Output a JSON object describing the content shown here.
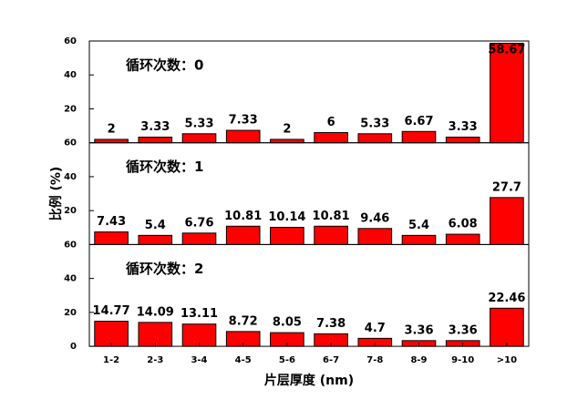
{
  "chart_data": [
    {
      "type": "bar",
      "annotation": "循环次数：0",
      "values": [
        2,
        3.33,
        5.33,
        7.33,
        2,
        6,
        5.33,
        6.67,
        3.33,
        58.67
      ],
      "ylim": [
        0,
        60
      ],
      "yticks": [
        20,
        40,
        60
      ],
      "color": "#ff0000"
    },
    {
      "type": "bar",
      "annotation": "循环次数：1",
      "ylabel": "比例 (%)",
      "values": [
        7.43,
        5.4,
        6.76,
        10.81,
        10.14,
        10.81,
        9.46,
        5.4,
        6.08,
        27.7
      ],
      "ylim": [
        0,
        60
      ],
      "yticks": [
        20,
        40,
        60
      ],
      "color": "#ff0000"
    },
    {
      "type": "bar",
      "annotation": "循环次数：2",
      "xlabel": "片层厚度 (nm)",
      "categories": [
        "1-2",
        "2-3",
        "3-4",
        "4-5",
        "5-6",
        "6-7",
        "7-8",
        "8-9",
        "9-10",
        ">10"
      ],
      "values": [
        14.77,
        14.09,
        13.11,
        8.72,
        8.05,
        7.38,
        4.7,
        3.36,
        3.36,
        22.46
      ],
      "ylim": [
        0,
        60
      ],
      "yticks": [
        0,
        20,
        40,
        60
      ],
      "color": "#ff0000"
    }
  ]
}
